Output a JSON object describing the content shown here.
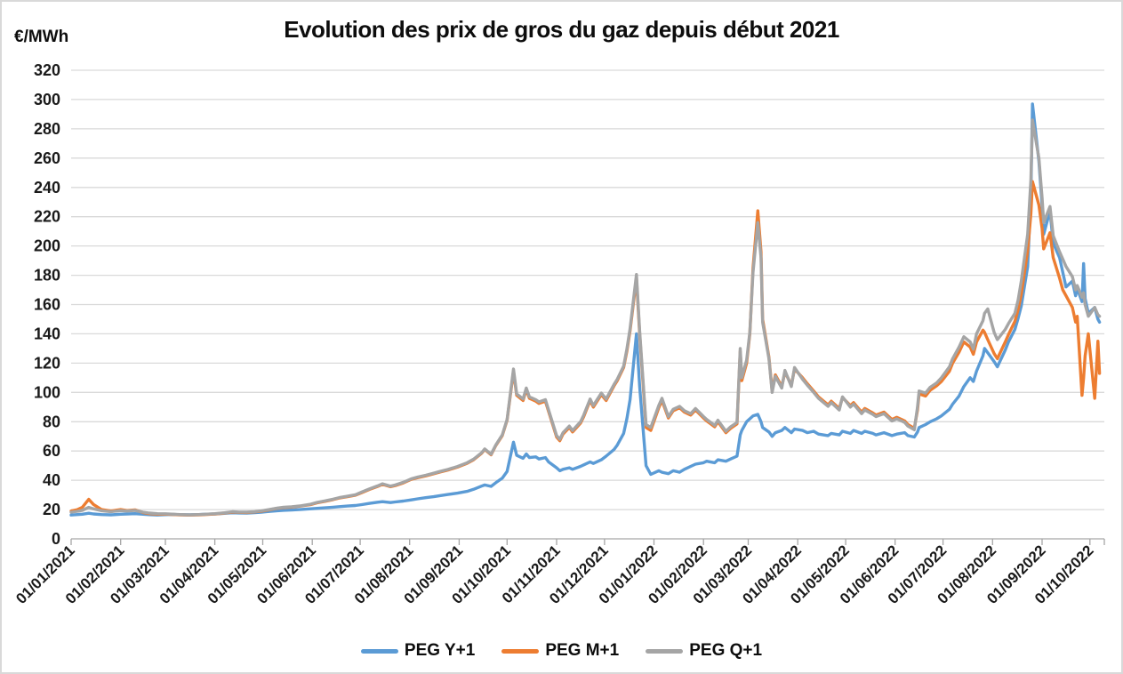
{
  "chart_data": {
    "type": "line",
    "title": "Evolution des prix de gros du gaz depuis début 2021",
    "ylabel": "€/MWh",
    "xlabel": "",
    "ylim": [
      0,
      320
    ],
    "ytick_step": 20,
    "yticks": [
      0,
      20,
      40,
      60,
      80,
      100,
      120,
      140,
      160,
      180,
      200,
      220,
      240,
      260,
      280,
      300,
      320
    ],
    "x_domain": [
      "2021-01-01",
      "2022-10-10"
    ],
    "x_tick_labels": [
      "01/01/2021",
      "01/02/2021",
      "01/03/2021",
      "01/04/2021",
      "01/05/2021",
      "01/06/2021",
      "01/07/2021",
      "01/08/2021",
      "01/09/2021",
      "01/10/2021",
      "01/11/2021",
      "01/12/2021",
      "01/01/2022",
      "01/02/2022",
      "01/03/2022",
      "01/04/2022",
      "01/05/2022",
      "01/06/2022",
      "01/07/2022",
      "01/08/2022",
      "01/09/2022",
      "01/10/2022"
    ],
    "grid": true,
    "legend_position": "bottom",
    "colors": {
      "axis": "#a6a6a6",
      "grid": "#d9d9d9",
      "tick_text": "#1a1a1a"
    },
    "dates": [
      "2021-01-01",
      "2021-01-05",
      "2021-01-08",
      "2021-01-12",
      "2021-01-15",
      "2021-01-20",
      "2021-01-26",
      "2021-02-01",
      "2021-02-05",
      "2021-02-10",
      "2021-02-15",
      "2021-02-19",
      "2021-02-24",
      "2021-03-01",
      "2021-03-05",
      "2021-03-10",
      "2021-03-16",
      "2021-03-22",
      "2021-03-26",
      "2021-04-01",
      "2021-04-07",
      "2021-04-12",
      "2021-04-16",
      "2021-04-21",
      "2021-04-26",
      "2021-04-30",
      "2021-05-05",
      "2021-05-10",
      "2021-05-14",
      "2021-05-19",
      "2021-05-25",
      "2021-05-31",
      "2021-06-04",
      "2021-06-09",
      "2021-06-14",
      "2021-06-18",
      "2021-06-23",
      "2021-06-28",
      "2021-07-02",
      "2021-07-07",
      "2021-07-12",
      "2021-07-15",
      "2021-07-20",
      "2021-07-23",
      "2021-07-28",
      "2021-08-02",
      "2021-08-06",
      "2021-08-11",
      "2021-08-16",
      "2021-08-20",
      "2021-08-25",
      "2021-08-31",
      "2021-09-06",
      "2021-09-10",
      "2021-09-15",
      "2021-09-17",
      "2021-09-21",
      "2021-09-24",
      "2021-09-28",
      "2021-10-01",
      "2021-10-05",
      "2021-10-07",
      "2021-10-11",
      "2021-10-13",
      "2021-10-15",
      "2021-10-19",
      "2021-10-21",
      "2021-10-25",
      "2021-10-27",
      "2021-11-01",
      "2021-11-03",
      "2021-11-05",
      "2021-11-09",
      "2021-11-11",
      "2021-11-16",
      "2021-11-18",
      "2021-11-22",
      "2021-11-24",
      "2021-11-29",
      "2021-12-02",
      "2021-12-07",
      "2021-12-09",
      "2021-12-13",
      "2021-12-15",
      "2021-12-17",
      "2021-12-21",
      "2021-12-23",
      "2021-12-27",
      "2021-12-30",
      "2022-01-04",
      "2022-01-06",
      "2022-01-10",
      "2022-01-13",
      "2022-01-17",
      "2022-01-20",
      "2022-01-24",
      "2022-01-27",
      "2022-02-01",
      "2022-02-03",
      "2022-02-08",
      "2022-02-10",
      "2022-02-15",
      "2022-02-18",
      "2022-02-22",
      "2022-02-24",
      "2022-02-25",
      "2022-02-28",
      "2022-03-02",
      "2022-03-04",
      "2022-03-07",
      "2022-03-09",
      "2022-03-10",
      "2022-03-14",
      "2022-03-16",
      "2022-03-18",
      "2022-03-22",
      "2022-03-24",
      "2022-03-28",
      "2022-03-30",
      "2022-04-04",
      "2022-04-07",
      "2022-04-11",
      "2022-04-14",
      "2022-04-20",
      "2022-04-22",
      "2022-04-27",
      "2022-04-29",
      "2022-05-04",
      "2022-05-06",
      "2022-05-11",
      "2022-05-13",
      "2022-05-18",
      "2022-05-20",
      "2022-05-25",
      "2022-05-30",
      "2022-06-02",
      "2022-06-07",
      "2022-06-09",
      "2022-06-13",
      "2022-06-15",
      "2022-06-16",
      "2022-06-20",
      "2022-06-23",
      "2022-06-27",
      "2022-06-30",
      "2022-07-05",
      "2022-07-07",
      "2022-07-11",
      "2022-07-14",
      "2022-07-18",
      "2022-07-20",
      "2022-07-22",
      "2022-07-26",
      "2022-07-27",
      "2022-07-29",
      "2022-08-02",
      "2022-08-04",
      "2022-08-09",
      "2022-08-11",
      "2022-08-15",
      "2022-08-17",
      "2022-08-19",
      "2022-08-23",
      "2022-08-25",
      "2022-08-26",
      "2022-08-30",
      "2022-09-01",
      "2022-09-02",
      "2022-09-06",
      "2022-09-08",
      "2022-09-12",
      "2022-09-14",
      "2022-09-16",
      "2022-09-20",
      "2022-09-22",
      "2022-09-23",
      "2022-09-26",
      "2022-09-27",
      "2022-09-28",
      "2022-09-30",
      "2022-10-04",
      "2022-10-06",
      "2022-10-07"
    ],
    "series": [
      {
        "name": "PEG Y+1",
        "color": "#5B9BD5",
        "values": [
          16.3,
          16.6,
          16.8,
          17.5,
          17.0,
          16.6,
          16.4,
          16.8,
          17.0,
          17.2,
          16.8,
          16.5,
          16.3,
          16.5,
          16.7,
          16.5,
          16.4,
          16.6,
          16.8,
          17.0,
          17.4,
          17.8,
          17.7,
          17.6,
          17.9,
          18.2,
          18.7,
          19.2,
          19.5,
          19.7,
          20.1,
          20.5,
          20.8,
          21.2,
          21.6,
          22.0,
          22.4,
          22.8,
          23.4,
          24.2,
          25.0,
          25.4,
          24.8,
          25.2,
          25.8,
          26.6,
          27.3,
          28.1,
          28.8,
          29.5,
          30.3,
          31.2,
          32.4,
          33.8,
          36.0,
          36.8,
          35.8,
          38.4,
          41.5,
          46.0,
          66.0,
          57.0,
          55.0,
          58.0,
          55.5,
          56.0,
          54.5,
          55.5,
          52.5,
          48.5,
          46.5,
          47.5,
          48.5,
          47.5,
          49.5,
          50.5,
          52.5,
          51.5,
          54.0,
          56.5,
          61.0,
          64.0,
          72.0,
          82.0,
          95.0,
          140.0,
          104.0,
          50.0,
          44.0,
          46.5,
          45.5,
          44.5,
          46.5,
          45.5,
          47.5,
          49.5,
          51.0,
          52.0,
          53.0,
          52.0,
          54.0,
          53.0,
          54.5,
          56.5,
          71.0,
          74.0,
          80.0,
          82.0,
          84.0,
          85.0,
          80.0,
          76.0,
          73.0,
          70.0,
          72.5,
          74.0,
          76.0,
          72.5,
          75.0,
          74.0,
          72.5,
          73.5,
          71.5,
          70.5,
          72.0,
          71.0,
          73.5,
          72.0,
          74.0,
          72.0,
          73.5,
          72.0,
          71.0,
          72.5,
          70.5,
          71.5,
          72.5,
          70.5,
          69.5,
          73.0,
          76.0,
          78.0,
          80.0,
          82.0,
          84.0,
          88.5,
          92.0,
          97.5,
          104.0,
          110.0,
          107.5,
          114.5,
          125.0,
          130.0,
          127.0,
          121.0,
          117.5,
          129.0,
          134.5,
          143.0,
          150.5,
          159.0,
          186.0,
          235.0,
          297.0,
          258.0,
          228.0,
          208.0,
          224.0,
          202.0,
          192.0,
          182.0,
          172.0,
          176.0,
          166.0,
          171.0,
          162.0,
          188.0,
          164.0,
          154.0,
          158.0,
          150.0,
          148.0
        ]
      },
      {
        "name": "PEG M+1",
        "color": "#ED7D31",
        "values": [
          19.0,
          20.0,
          21.5,
          27.0,
          23.5,
          20.0,
          19.0,
          20.0,
          19.3,
          19.8,
          18.0,
          17.2,
          16.8,
          16.9,
          16.7,
          16.4,
          16.2,
          16.4,
          16.6,
          17.0,
          17.6,
          18.3,
          18.1,
          18.0,
          18.4,
          18.9,
          19.8,
          20.8,
          21.4,
          21.7,
          22.4,
          23.4,
          24.6,
          25.6,
          26.8,
          27.9,
          28.8,
          29.8,
          31.6,
          33.8,
          35.8,
          37.2,
          35.6,
          36.4,
          38.2,
          40.6,
          41.8,
          43.0,
          44.4,
          45.6,
          47.0,
          49.0,
          51.6,
          54.0,
          58.4,
          61.0,
          57.4,
          63.8,
          70.5,
          81.0,
          114.5,
          98.0,
          94.5,
          102.0,
          96.0,
          94.0,
          92.5,
          94.0,
          87.0,
          69.5,
          67.0,
          71.5,
          76.0,
          73.0,
          79.0,
          83.5,
          94.5,
          90.0,
          98.5,
          94.5,
          104.5,
          108.0,
          117.0,
          128.0,
          142.0,
          178.0,
          140.0,
          76.0,
          74.0,
          89.5,
          94.5,
          82.5,
          87.5,
          89.5,
          86.5,
          84.5,
          88.0,
          82.5,
          80.5,
          76.5,
          80.0,
          72.5,
          75.5,
          78.5,
          128.0,
          108.0,
          120.0,
          140.0,
          185.0,
          224.0,
          196.0,
          150.0,
          124.0,
          101.0,
          112.0,
          104.0,
          114.0,
          105.0,
          116.0,
          110.0,
          106.0,
          101.0,
          97.0,
          91.5,
          94.0,
          89.0,
          96.5,
          91.0,
          93.0,
          86.5,
          89.0,
          86.0,
          84.5,
          86.5,
          81.5,
          83.0,
          80.5,
          78.0,
          75.5,
          88.0,
          99.0,
          97.5,
          101.5,
          104.5,
          107.5,
          114.5,
          120.0,
          127.5,
          134.5,
          131.0,
          126.0,
          134.5,
          142.5,
          141.0,
          136.0,
          126.5,
          123.0,
          134.5,
          139.5,
          148.5,
          156.5,
          167.0,
          197.0,
          222.0,
          244.0,
          228.0,
          212.0,
          198.0,
          209.0,
          192.0,
          178.0,
          170.0,
          166.0,
          158.0,
          148.0,
          152.0,
          98.0,
          110.0,
          125.0,
          140.0,
          96.0,
          135.0,
          113.0
        ]
      },
      {
        "name": "PEG Q+1",
        "color": "#A5A5A5",
        "values": [
          18.2,
          18.8,
          19.5,
          21.5,
          20.5,
          19.2,
          18.6,
          19.3,
          19.0,
          19.4,
          18.2,
          17.6,
          17.2,
          17.1,
          16.9,
          16.6,
          16.4,
          16.6,
          16.8,
          17.2,
          17.8,
          18.5,
          18.3,
          18.2,
          18.6,
          19.1,
          20.0,
          21.0,
          21.6,
          21.9,
          22.6,
          23.7,
          24.9,
          25.9,
          27.1,
          28.2,
          29.1,
          30.1,
          32.0,
          34.2,
          36.2,
          37.6,
          36.0,
          36.8,
          38.6,
          41.0,
          42.2,
          43.4,
          44.8,
          46.0,
          47.4,
          49.4,
          52.0,
          54.4,
          58.8,
          61.4,
          57.8,
          64.2,
          71.0,
          81.5,
          116.0,
          99.0,
          95.5,
          103.0,
          97.0,
          95.0,
          93.5,
          95.0,
          88.0,
          70.5,
          68.0,
          72.5,
          77.0,
          74.0,
          80.0,
          84.5,
          95.5,
          91.0,
          99.5,
          95.5,
          105.5,
          109.0,
          118.0,
          129.5,
          143.5,
          180.5,
          142.0,
          78.0,
          76.0,
          91.0,
          96.0,
          83.5,
          88.5,
          90.5,
          87.5,
          85.5,
          89.0,
          83.5,
          81.5,
          77.5,
          81.0,
          73.5,
          76.5,
          79.5,
          130.0,
          110.0,
          122.0,
          141.0,
          182.0,
          216.0,
          192.0,
          148.0,
          123.0,
          100.0,
          111.0,
          103.0,
          115.0,
          104.0,
          117.0,
          109.0,
          105.0,
          100.0,
          96.0,
          90.5,
          93.0,
          88.0,
          97.0,
          90.0,
          92.0,
          85.5,
          88.0,
          85.0,
          83.5,
          85.5,
          80.5,
          82.0,
          79.5,
          77.0,
          74.5,
          90.0,
          101.0,
          99.5,
          103.5,
          106.5,
          110.0,
          117.5,
          123.0,
          131.0,
          138.0,
          134.5,
          129.5,
          140.0,
          149.0,
          154.0,
          157.0,
          141.0,
          136.0,
          143.0,
          147.0,
          154.0,
          163.0,
          176.0,
          208.0,
          245.0,
          286.0,
          260.0,
          233.0,
          216.0,
          227.0,
          207.0,
          196.0,
          191.0,
          186.0,
          179.0,
          170.0,
          173.0,
          165.0,
          168.0,
          160.0,
          152.0,
          158.0,
          153.0,
          152.0
        ]
      }
    ]
  }
}
